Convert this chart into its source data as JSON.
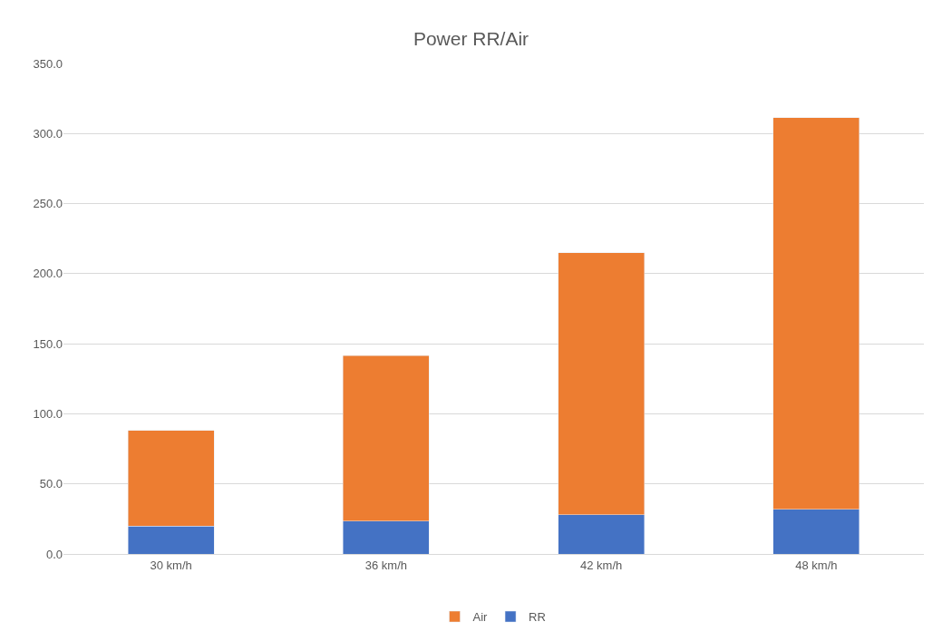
{
  "chart_data": {
    "type": "bar",
    "title": "Power RR/Air",
    "stacked": true,
    "categories": [
      "30 km/h",
      "36 km/h",
      "42 km/h",
      "48 km/h"
    ],
    "series": [
      {
        "name": "RR",
        "color": "#4472c4",
        "values": [
          20,
          23.5,
          28,
          32
        ]
      },
      {
        "name": "Air",
        "color": "#ed7d31",
        "values": [
          68,
          118,
          187,
          279.5
        ]
      }
    ],
    "ylim": [
      0,
      350
    ],
    "yticks": [
      {
        "value": 0,
        "label": "0.0"
      },
      {
        "value": 50,
        "label": "50.0"
      },
      {
        "value": 100,
        "label": "100.0"
      },
      {
        "value": 150,
        "label": "150.0"
      },
      {
        "value": 200,
        "label": "200.0"
      },
      {
        "value": 250,
        "label": "250.0"
      },
      {
        "value": 300,
        "label": "300.0"
      },
      {
        "value": 350,
        "label": "350.0"
      }
    ],
    "grid": "y",
    "legend": "bottom"
  }
}
